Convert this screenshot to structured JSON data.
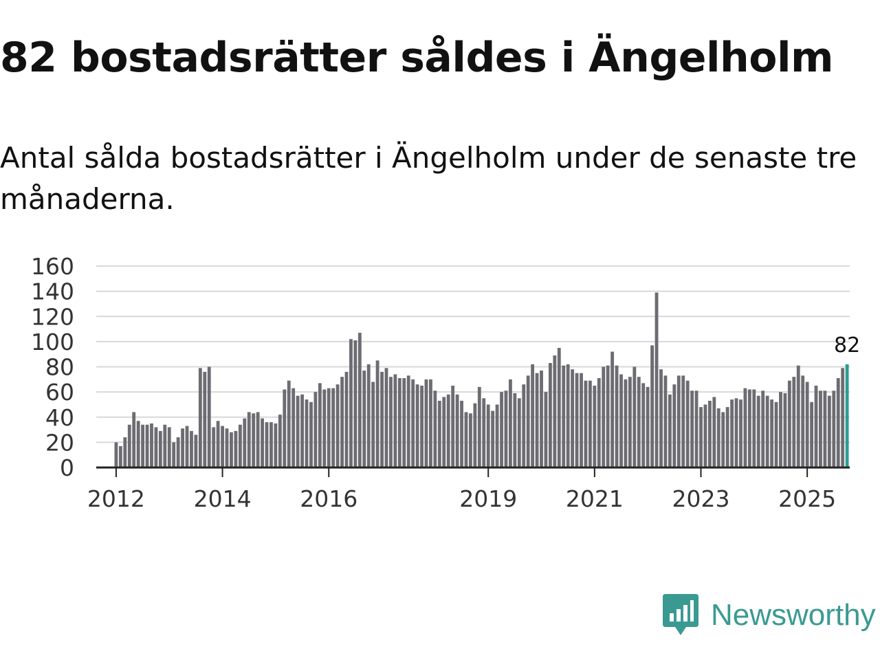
{
  "header": {
    "title": "82 bostadsrätter såldes i Ängelholm",
    "subtitle": "Antal sålda bostadsrätter i Ängelholm under de senaste tre månaderna."
  },
  "brand": {
    "name": "Newsworthy",
    "icon": "newsworthy-logo-icon",
    "color": "#3a9a92"
  },
  "colors": {
    "bar": "#6d6c72",
    "highlight": "#2a9d8f",
    "grid": "#d8d8d8",
    "axis": "#222222"
  },
  "chart_data": {
    "type": "bar",
    "title": "Antal sålda bostadsrätter i Ängelholm",
    "xlabel": "",
    "ylabel": "",
    "ylim": [
      0,
      160
    ],
    "yticks": [
      0,
      20,
      40,
      60,
      80,
      100,
      120,
      140,
      160
    ],
    "x_start": 2012.0,
    "x_range": [
      2011.6,
      2025.8
    ],
    "x_step_months": 1,
    "xtick_labels": [
      {
        "label": "2012",
        "year": 2012
      },
      {
        "label": "2014",
        "year": 2014
      },
      {
        "label": "2016",
        "year": 2016
      },
      {
        "label": "2019",
        "year": 2019
      },
      {
        "label": "2021",
        "year": 2021
      },
      {
        "label": "2023",
        "year": 2023
      },
      {
        "label": "2025",
        "year": 2025
      }
    ],
    "last_value_label": "82",
    "values": [
      20,
      17,
      24,
      34,
      44,
      37,
      34,
      34,
      35,
      32,
      29,
      34,
      32,
      20,
      24,
      31,
      33,
      29,
      26,
      79,
      76,
      80,
      32,
      37,
      33,
      31,
      28,
      29,
      34,
      39,
      44,
      43,
      44,
      39,
      36,
      36,
      35,
      42,
      62,
      69,
      63,
      57,
      58,
      54,
      52,
      60,
      67,
      62,
      63,
      63,
      66,
      72,
      76,
      102,
      101,
      107,
      77,
      82,
      68,
      85,
      76,
      79,
      72,
      74,
      71,
      71,
      73,
      70,
      66,
      65,
      70,
      70,
      61,
      53,
      56,
      58,
      65,
      58,
      53,
      44,
      43,
      51,
      64,
      55,
      50,
      45,
      50,
      60,
      61,
      70,
      59,
      55,
      66,
      73,
      82,
      75,
      77,
      60,
      83,
      89,
      95,
      81,
      82,
      78,
      75,
      75,
      69,
      69,
      65,
      71,
      80,
      81,
      92,
      81,
      74,
      70,
      72,
      80,
      72,
      67,
      64,
      97,
      139,
      78,
      73,
      58,
      66,
      73,
      73,
      69,
      61,
      61,
      48,
      50,
      53,
      56,
      47,
      44,
      48,
      54,
      55,
      54,
      63,
      62,
      62,
      57,
      61,
      57,
      54,
      52,
      60,
      59,
      69,
      72,
      81,
      73,
      68,
      52,
      65,
      61,
      61,
      57,
      61,
      71,
      79,
      82
    ]
  }
}
